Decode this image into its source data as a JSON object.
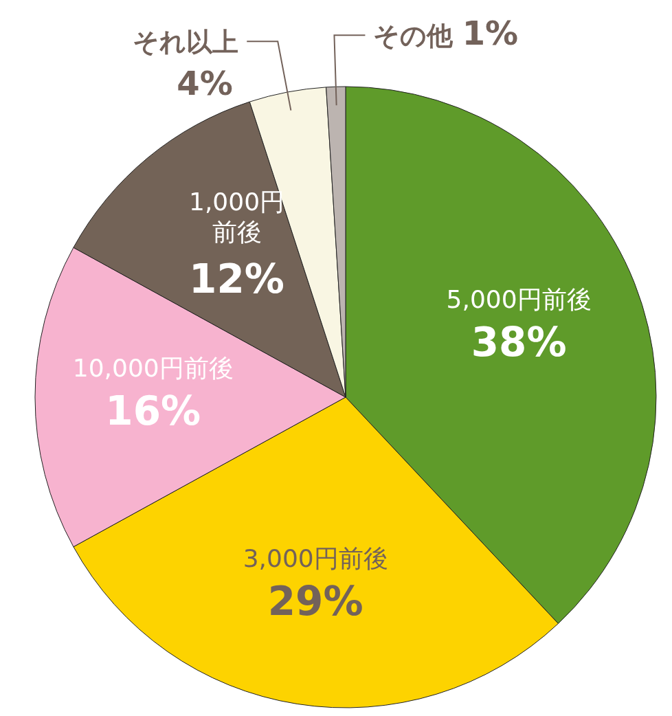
{
  "chart_data": {
    "type": "pie",
    "categories": [
      "5,000円前後",
      "3,000円前後",
      "10,000円前後",
      "1,000円前後",
      "それ以上",
      "その他"
    ],
    "values": [
      38,
      29,
      16,
      12,
      4,
      1
    ],
    "colors": [
      "#5f9b2a",
      "#fdd300",
      "#f7b3cf",
      "#736357",
      "#f9f6e3",
      "#bcb4b0"
    ],
    "value_labels": [
      "38%",
      "29%",
      "16%",
      "12%",
      "4%",
      "1%"
    ]
  }
}
